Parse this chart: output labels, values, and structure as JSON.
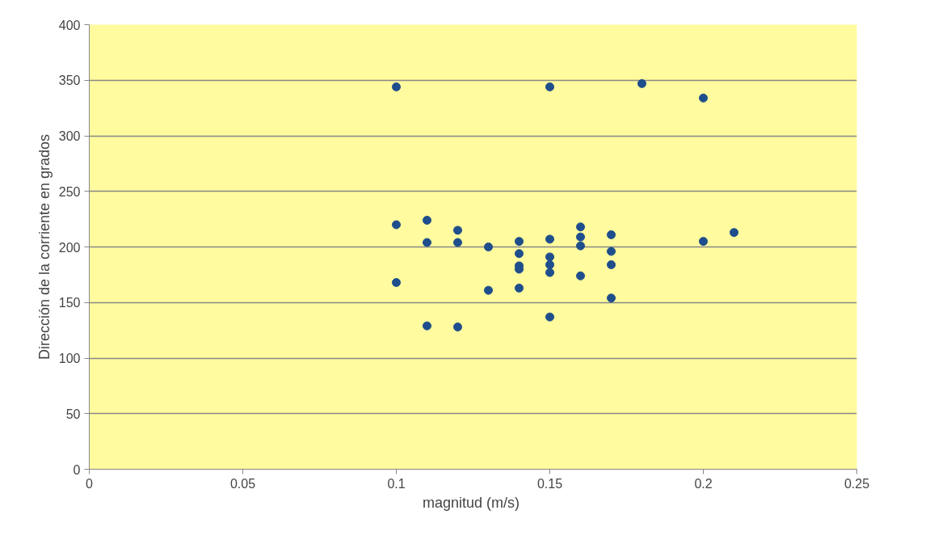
{
  "chart_data": {
    "type": "scatter",
    "xlabel": "magnitud  (m/s)",
    "ylabel": "Dirección de la corriente en grados",
    "x": [
      0.1,
      0.1,
      0.1,
      0.11,
      0.11,
      0.11,
      0.12,
      0.12,
      0.12,
      0.13,
      0.13,
      0.14,
      0.14,
      0.14,
      0.14,
      0.14,
      0.15,
      0.15,
      0.15,
      0.15,
      0.15,
      0.15,
      0.16,
      0.16,
      0.16,
      0.16,
      0.17,
      0.17,
      0.17,
      0.17,
      0.18,
      0.2,
      0.2,
      0.21
    ],
    "series": [
      {
        "color": "#1f4e8c",
        "values": [
          344,
          220,
          168,
          224,
          204,
          129,
          215,
          204,
          128,
          200,
          161,
          205,
          194,
          183,
          180,
          163,
          344,
          207,
          191,
          184,
          177,
          137,
          218,
          209,
          201,
          174,
          211,
          196,
          184,
          154,
          347,
          334,
          205,
          213
        ]
      }
    ],
    "xlim": [
      0,
      0.25
    ],
    "xticks": [
      0,
      0.05,
      0.1,
      0.15,
      0.2,
      0.25
    ],
    "ylim": [
      0,
      400
    ],
    "yticks": [
      0,
      50,
      100,
      150,
      200,
      250,
      300,
      350,
      400
    ],
    "grid": "y",
    "marker": "circle"
  }
}
